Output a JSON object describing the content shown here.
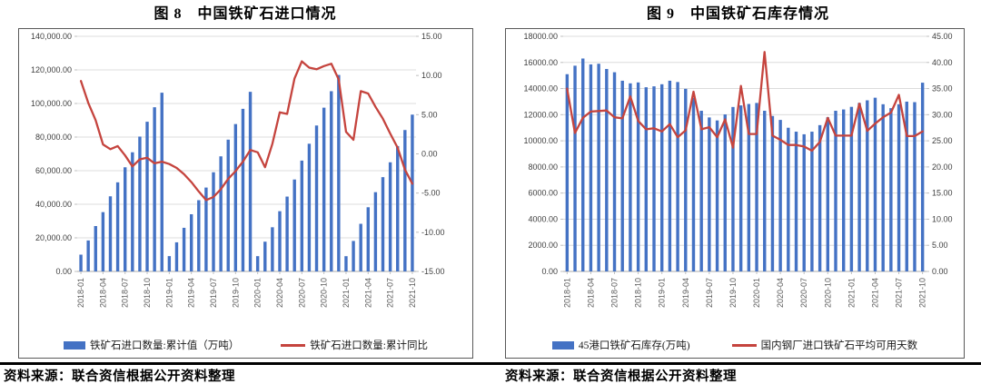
{
  "page": {
    "source_note_left": "资料来源：联合资信根据公开资料整理",
    "source_note_right": "资料来源：联合资信根据公开资料整理"
  },
  "colors": {
    "bar_blue": "#4472C4",
    "line_red": "#C5443E",
    "gridline": "#DCDCDC",
    "axis_text": "#404040",
    "x_tick_text": "#595959"
  },
  "chart_data": [
    {
      "type": "bar+line",
      "title": "图 8　中国铁矿石进口情况",
      "grid": true,
      "legend_position": "bottom",
      "categories": [
        "2018-01",
        "2018-02",
        "2018-03",
        "2018-04",
        "2018-05",
        "2018-06",
        "2018-07",
        "2018-08",
        "2018-09",
        "2018-10",
        "2018-11",
        "2018-12",
        "2019-01",
        "2019-02",
        "2019-03",
        "2019-04",
        "2019-05",
        "2019-06",
        "2019-07",
        "2019-08",
        "2019-09",
        "2019-10",
        "2019-11",
        "2019-12",
        "2020-01",
        "2020-02",
        "2020-03",
        "2020-04",
        "2020-05",
        "2020-06",
        "2020-07",
        "2020-08",
        "2020-09",
        "2020-10",
        "2020-11",
        "2020-12",
        "2021-01",
        "2021-02",
        "2021-03",
        "2021-04",
        "2021-05",
        "2021-06",
        "2021-07",
        "2021-08",
        "2021-09",
        "2021-10"
      ],
      "x_tick_every": 3,
      "x_tick_labels": [
        "2018-01",
        "2018-04",
        "2018-07",
        "2018-10",
        "2019-01",
        "2019-04",
        "2019-07",
        "2019-10",
        "2020-01",
        "2020-04",
        "2020-07",
        "2020-10",
        "2021-01",
        "2021-04",
        "2021-07",
        "2021-10"
      ],
      "left_axis": {
        "min": 0,
        "max": 140000,
        "tick_labels": [
          "0.00",
          "20,000.00",
          "40,000.00",
          "60,000.00",
          "80,000.00",
          "100,000.00",
          "120,000.00",
          "140,000.00"
        ]
      },
      "right_axis": {
        "min": -15,
        "max": 15,
        "tick_labels": [
          "-15.00",
          "-10.00",
          "-5.00",
          "0.00",
          "5.00",
          "10.00",
          "15.00"
        ]
      },
      "series": [
        {
          "name": "铁矿石进口数量:累计值（万吨）",
          "type": "bar",
          "axis": "left",
          "color": "#4472C4",
          "values": [
            10000,
            18447,
            27025,
            35317,
            44731,
            53055,
            62015,
            70950,
            80297,
            89137,
            97762,
            106427,
            9126,
            17334,
            25976,
            34053,
            42428,
            49946,
            59048,
            68533,
            78469,
            87755,
            96820,
            106950,
            9100,
            17710,
            26300,
            35870,
            44570,
            54740,
            66000,
            76040,
            86890,
            97510,
            107320,
            116990,
            9080,
            18150,
            28360,
            38220,
            47200,
            56140,
            64990,
            74650,
            84200,
            93370
          ]
        },
        {
          "name": "铁矿石进口数量:累计同比",
          "type": "line",
          "axis": "right",
          "color": "#C5443E",
          "values": [
            9.3,
            6.5,
            4.3,
            1.2,
            0.6,
            1.0,
            -0.2,
            -1.6,
            -0.7,
            -0.5,
            -1.2,
            -1.0,
            -1.3,
            -1.8,
            -2.6,
            -3.6,
            -4.8,
            -5.9,
            -5.5,
            -4.5,
            -3.2,
            -2.2,
            -1.0,
            0.5,
            0.2,
            -1.7,
            1.3,
            5.3,
            5.1,
            9.6,
            11.8,
            11.0,
            10.8,
            11.2,
            11.5,
            9.5,
            2.8,
            1.8,
            8.0,
            7.7,
            6.0,
            4.5,
            2.6,
            0.8,
            -2.0,
            -3.8
          ]
        }
      ]
    },
    {
      "type": "bar+line",
      "title": "图 9　中国铁矿石库存情况",
      "grid": true,
      "legend_position": "bottom",
      "categories": [
        "2018-01",
        "2018-02",
        "2018-03",
        "2018-04",
        "2018-05",
        "2018-06",
        "2018-07",
        "2018-08",
        "2018-09",
        "2018-10",
        "2018-11",
        "2018-12",
        "2019-01",
        "2019-02",
        "2019-03",
        "2019-04",
        "2019-05",
        "2019-06",
        "2019-07",
        "2019-08",
        "2019-09",
        "2019-10",
        "2019-11",
        "2019-12",
        "2020-01",
        "2020-02",
        "2020-03",
        "2020-04",
        "2020-05",
        "2020-06",
        "2020-07",
        "2020-08",
        "2020-09",
        "2020-10",
        "2020-11",
        "2020-12",
        "2021-01",
        "2021-02",
        "2021-03",
        "2021-04",
        "2021-05",
        "2021-06",
        "2021-07",
        "2021-08",
        "2021-09",
        "2021-10"
      ],
      "x_tick_every": 3,
      "x_tick_labels": [
        "2018-01",
        "2018-04",
        "2018-07",
        "2018-10",
        "2019-01",
        "2019-04",
        "2019-07",
        "2019-10",
        "2020-01",
        "2020-04",
        "2020-07",
        "2020-10",
        "2021-01",
        "2021-04",
        "2021-07",
        "2021-10"
      ],
      "left_axis": {
        "min": 0,
        "max": 18000,
        "tick_labels": [
          "0.00",
          "2000.00",
          "4000.00",
          "6000.00",
          "8000.00",
          "10000.00",
          "12000.00",
          "14000.00",
          "16000.00",
          "18000.00"
        ]
      },
      "right_axis": {
        "min": 0,
        "max": 45,
        "tick_labels": [
          "0.00",
          "5.00",
          "10.00",
          "15.00",
          "20.00",
          "25.00",
          "30.00",
          "35.00",
          "40.00",
          "45.00"
        ]
      },
      "series": [
        {
          "name": "45港口铁矿石库存(万吨)",
          "type": "bar",
          "axis": "left",
          "color": "#4472C4",
          "values": [
            15100,
            15750,
            16300,
            15850,
            15900,
            15500,
            15250,
            14600,
            14400,
            14470,
            14100,
            14170,
            14330,
            14600,
            14500,
            13980,
            13290,
            12300,
            11790,
            11560,
            12020,
            12590,
            12710,
            12820,
            12900,
            12300,
            11900,
            11600,
            11000,
            10700,
            10500,
            10700,
            11200,
            11800,
            12300,
            12400,
            12600,
            12900,
            13100,
            13300,
            12800,
            12500,
            12800,
            13000,
            12960,
            14450
          ]
        },
        {
          "name": "国内钢厂进口铁矿石平均可用天数",
          "type": "line",
          "axis": "right",
          "color": "#C5443E",
          "values": [
            35.0,
            26.5,
            29.4,
            30.6,
            30.7,
            30.8,
            29.5,
            29.3,
            33.5,
            28.8,
            27.2,
            27.4,
            26.8,
            28.2,
            25.7,
            27.0,
            34.4,
            27.2,
            27.6,
            25.7,
            29.1,
            23.7,
            35.5,
            26.3,
            26.3,
            42.0,
            26.0,
            25.2,
            24.2,
            24.2,
            23.9,
            23.1,
            24.8,
            29.4,
            26.0,
            26.0,
            26.0,
            32.1,
            26.9,
            28.3,
            29.5,
            30.4,
            33.8,
            25.9,
            25.9,
            26.8
          ]
        }
      ]
    }
  ]
}
